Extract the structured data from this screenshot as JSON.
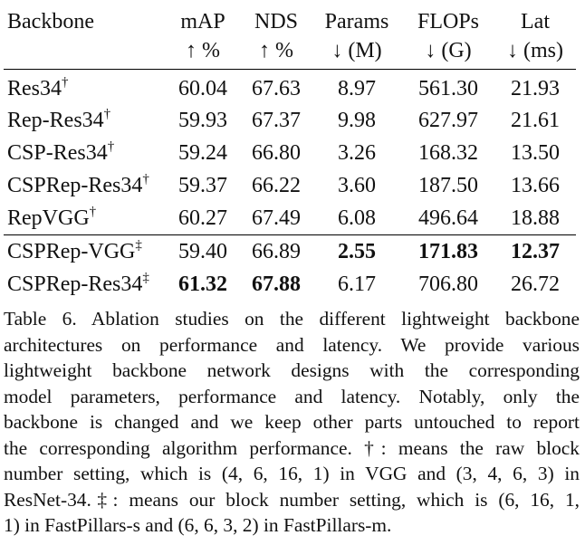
{
  "table": {
    "header": {
      "row1": [
        "Backbone",
        "mAP",
        "NDS",
        "Params",
        "FLOPs",
        "Lat"
      ],
      "row2": [
        "",
        "↑ %",
        "↑ %",
        "↓ (M)",
        "↓ (G)",
        "↓ (ms)"
      ]
    },
    "rows": [
      {
        "name": "Res34",
        "mark": "†",
        "cells": [
          "60.04",
          "67.63",
          "8.97",
          "561.30",
          "21.93"
        ],
        "bold": [
          false,
          false,
          false,
          false,
          false
        ]
      },
      {
        "name": "Rep-Res34",
        "mark": "†",
        "cells": [
          "59.93",
          "67.37",
          "9.98",
          "627.97",
          "21.61"
        ],
        "bold": [
          false,
          false,
          false,
          false,
          false
        ]
      },
      {
        "name": "CSP-Res34",
        "mark": "†",
        "cells": [
          "59.24",
          "66.80",
          "3.26",
          "168.32",
          "13.50"
        ],
        "bold": [
          false,
          false,
          false,
          false,
          false
        ]
      },
      {
        "name": "CSPRep-Res34",
        "mark": "†",
        "cells": [
          "59.37",
          "66.22",
          "3.60",
          "187.50",
          "13.66"
        ],
        "bold": [
          false,
          false,
          false,
          false,
          false
        ]
      },
      {
        "name": "RepVGG",
        "mark": "†",
        "cells": [
          "60.27",
          "67.49",
          "6.08",
          "496.64",
          "18.88"
        ],
        "bold": [
          false,
          false,
          false,
          false,
          false
        ]
      },
      {
        "name": "CSPRep-VGG",
        "mark": "‡",
        "cells": [
          "59.40",
          "66.89",
          "2.55",
          "171.83",
          "12.37"
        ],
        "bold": [
          false,
          false,
          true,
          true,
          true
        ]
      },
      {
        "name": "CSPRep-Res34",
        "mark": "‡",
        "cells": [
          "61.32",
          "67.88",
          "6.17",
          "706.80",
          "26.72"
        ],
        "bold": [
          true,
          true,
          false,
          false,
          false
        ]
      }
    ]
  },
  "caption": {
    "lines": [
      "Table 6.  Ablation studies on the different lightweight backbone",
      "architectures on performance and latency.  We provide various",
      "lightweight backbone network designs with the corresponding",
      "model parameters, performance and latency.  Notably, only the",
      "backbone is changed and we keep other parts untouched to report",
      "the corresponding algorithm performance. †: means the raw block",
      "number setting, which is (4, 6, 16, 1) in VGG and (3, 4, 6, 3) in",
      "ResNet-34.‡: means our block number setting, which is (6, 16, 1,",
      "1) in FastPillars-s and (6, 6, 3, 2) in FastPillars-m."
    ]
  }
}
